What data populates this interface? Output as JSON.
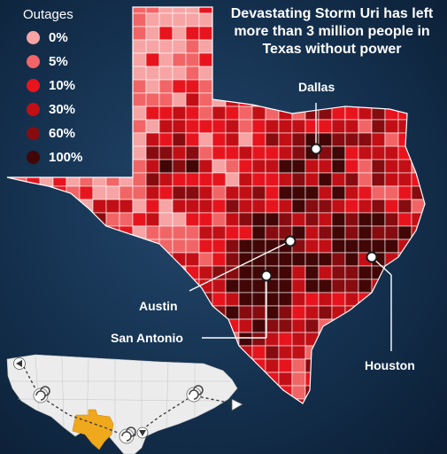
{
  "headline": {
    "line1": "Devastating Storm Uri has left",
    "line2": "more than 3 million people in",
    "line3": "Texas without power"
  },
  "legend": {
    "title": "Outages",
    "items": [
      {
        "label": "0%",
        "color": "#f7a4a4"
      },
      {
        "label": "5%",
        "color": "#f26566"
      },
      {
        "label": "10%",
        "color": "#e8141d"
      },
      {
        "label": "30%",
        "color": "#c20f16"
      },
      {
        "label": "60%",
        "color": "#870c10"
      },
      {
        "label": "100%",
        "color": "#420607"
      }
    ]
  },
  "cities": {
    "dallas": "Dallas",
    "austin": "Austin",
    "san_antonio": "San Antonio",
    "houston": "Houston"
  },
  "colors": {
    "background": "#14304e",
    "county_border": "#ffffff",
    "inset_land": "#eaeaea",
    "inset_texas": "#f0a81c"
  },
  "icons": [
    "storm-spiral-icon",
    "plane-icon",
    "direction-arrow-icon"
  ]
}
